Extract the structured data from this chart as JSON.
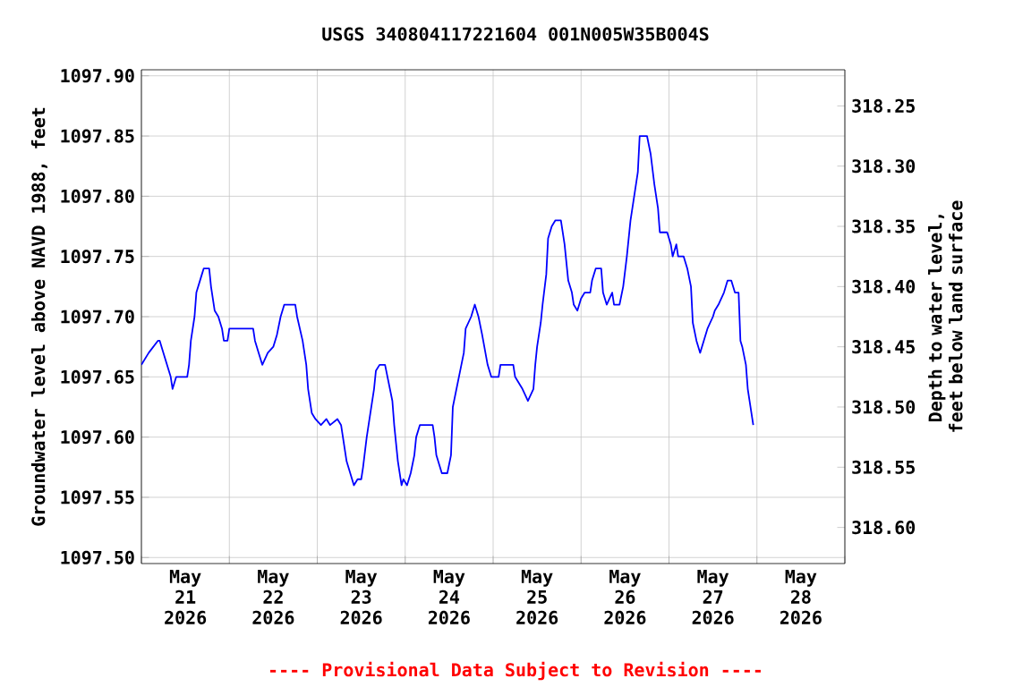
{
  "chart_data": {
    "type": "line",
    "title": "USGS 340804117221604 001N005W35B004S",
    "ylabel": "Groundwater level above NAVD 1988, feet",
    "y2label": "Depth to water level, feet below land surface",
    "annotations": [
      "---- Provisional Data Subject to Revision ----"
    ],
    "x": [
      "2026-05-21T00:00",
      "2026-05-21T02:00",
      "2026-05-21T04:30",
      "2026-05-21T05:00",
      "2026-05-21T06:00",
      "2026-05-21T07:00",
      "2026-05-21T08:00",
      "2026-05-21T08:30",
      "2026-05-21T09:30",
      "2026-05-21T12:30",
      "2026-05-21T13:00",
      "2026-05-21T13:30",
      "2026-05-21T14:30",
      "2026-05-21T15:00",
      "2026-05-21T16:30",
      "2026-05-21T17:00",
      "2026-05-21T18:30",
      "2026-05-21T19:00",
      "2026-05-21T20:00",
      "2026-05-21T21:00",
      "2026-05-21T22:00",
      "2026-05-21T22:30",
      "2026-05-21T23:30",
      "2026-05-22T00:00",
      "2026-05-22T06:30",
      "2026-05-22T07:00",
      "2026-05-22T08:00",
      "2026-05-22T09:00",
      "2026-05-22T10:30",
      "2026-05-22T12:00",
      "2026-05-22T13:00",
      "2026-05-22T14:00",
      "2026-05-22T15:00",
      "2026-05-22T18:00",
      "2026-05-22T18:30",
      "2026-05-22T20:00",
      "2026-05-22T21:00",
      "2026-05-22T21:30",
      "2026-05-22T22:30",
      "2026-05-22T23:30",
      "2026-05-23T01:00",
      "2026-05-23T02:30",
      "2026-05-23T03:30",
      "2026-05-23T05:30",
      "2026-05-23T06:30",
      "2026-05-23T07:00",
      "2026-05-23T08:00",
      "2026-05-23T09:00",
      "2026-05-23T10:00",
      "2026-05-23T11:00",
      "2026-05-23T12:00",
      "2026-05-23T12:30",
      "2026-05-23T13:30",
      "2026-05-23T14:30",
      "2026-05-23T15:30",
      "2026-05-23T16:00",
      "2026-05-23T17:00",
      "2026-05-23T18:30",
      "2026-05-23T19:30",
      "2026-05-23T20:30",
      "2026-05-23T21:00",
      "2026-05-23T22:00",
      "2026-05-23T23:00",
      "2026-05-23T23:30",
      "2026-05-24T00:30",
      "2026-05-24T01:30",
      "2026-05-24T02:30",
      "2026-05-24T03:00",
      "2026-05-24T04:00",
      "2026-05-24T07:30",
      "2026-05-24T08:00",
      "2026-05-24T08:30",
      "2026-05-24T10:00",
      "2026-05-24T11:30",
      "2026-05-24T12:30",
      "2026-05-24T13:00",
      "2026-05-24T14:00",
      "2026-05-24T15:00",
      "2026-05-24T16:00",
      "2026-05-24T16:30",
      "2026-05-24T18:00",
      "2026-05-24T19:00",
      "2026-05-24T20:00",
      "2026-05-24T21:00",
      "2026-05-24T22:30",
      "2026-05-24T23:30",
      "2026-05-25T01:30",
      "2026-05-25T02:00",
      "2026-05-25T05:30",
      "2026-05-25T06:00",
      "2026-05-25T07:00",
      "2026-05-25T08:00",
      "2026-05-25T09:30",
      "2026-05-25T11:00",
      "2026-05-25T11:30",
      "2026-05-25T12:00",
      "2026-05-25T13:00",
      "2026-05-25T13:30",
      "2026-05-25T14:30",
      "2026-05-25T15:00",
      "2026-05-25T16:00",
      "2026-05-25T17:00",
      "2026-05-25T18:30",
      "2026-05-25T19:30",
      "2026-05-25T20:30",
      "2026-05-25T21:30",
      "2026-05-25T22:00",
      "2026-05-25T23:00",
      "2026-05-26T00:00",
      "2026-05-26T01:00",
      "2026-05-26T02:30",
      "2026-05-26T03:00",
      "2026-05-26T04:00",
      "2026-05-26T05:30",
      "2026-05-26T06:00",
      "2026-05-26T07:00",
      "2026-05-26T08:30",
      "2026-05-26T09:00",
      "2026-05-26T10:30",
      "2026-05-26T11:30",
      "2026-05-26T12:30",
      "2026-05-26T13:30",
      "2026-05-26T14:30",
      "2026-05-26T15:30",
      "2026-05-26T16:00",
      "2026-05-26T18:00",
      "2026-05-26T19:00",
      "2026-05-26T20:00",
      "2026-05-26T21:00",
      "2026-05-26T21:30",
      "2026-05-26T23:30",
      "2026-05-27T00:30",
      "2026-05-27T01:00",
      "2026-05-27T02:00",
      "2026-05-27T02:30",
      "2026-05-27T04:00",
      "2026-05-27T05:00",
      "2026-05-27T06:00",
      "2026-05-27T06:30",
      "2026-05-27T07:30",
      "2026-05-27T08:30",
      "2026-05-27T09:30",
      "2026-05-27T10:30",
      "2026-05-27T12:00",
      "2026-05-27T12:30",
      "2026-05-27T13:30",
      "2026-05-27T15:00",
      "2026-05-27T16:00",
      "2026-05-27T17:00",
      "2026-05-27T18:00",
      "2026-05-27T19:00",
      "2026-05-27T19:30",
      "2026-05-27T20:00",
      "2026-05-27T21:00",
      "2026-05-27T21:30",
      "2026-05-27T22:00",
      "2026-05-27T23:00"
    ],
    "series": [
      {
        "color": "#0000ff",
        "values": [
          1097.66,
          1097.67,
          1097.68,
          1097.68,
          1097.67,
          1097.66,
          1097.65,
          1097.64,
          1097.65,
          1097.65,
          1097.66,
          1097.68,
          1097.7,
          1097.72,
          1097.735,
          1097.74,
          1097.74,
          1097.725,
          1097.705,
          1097.7,
          1097.69,
          1097.68,
          1097.68,
          1097.69,
          1097.69,
          1097.68,
          1097.67,
          1097.66,
          1097.67,
          1097.675,
          1097.685,
          1097.7,
          1097.71,
          1097.71,
          1097.7,
          1097.68,
          1097.66,
          1097.64,
          1097.62,
          1097.615,
          1097.61,
          1097.615,
          1097.61,
          1097.615,
          1097.61,
          1097.6,
          1097.58,
          1097.57,
          1097.56,
          1097.565,
          1097.565,
          1097.575,
          1097.6,
          1097.62,
          1097.64,
          1097.655,
          1097.66,
          1097.66,
          1097.645,
          1097.63,
          1097.61,
          1097.58,
          1097.56,
          1097.565,
          1097.56,
          1097.57,
          1097.585,
          1097.6,
          1097.61,
          1097.61,
          1097.6,
          1097.585,
          1097.57,
          1097.57,
          1097.585,
          1097.625,
          1097.64,
          1097.655,
          1097.67,
          1097.69,
          1097.7,
          1097.71,
          1097.7,
          1097.685,
          1097.66,
          1097.65,
          1097.65,
          1097.66,
          1097.66,
          1097.65,
          1097.645,
          1097.64,
          1097.63,
          1097.64,
          1097.66,
          1097.675,
          1097.695,
          1097.71,
          1097.735,
          1097.765,
          1097.775,
          1097.78,
          1097.78,
          1097.76,
          1097.73,
          1097.72,
          1097.71,
          1097.705,
          1097.715,
          1097.72,
          1097.72,
          1097.73,
          1097.74,
          1097.74,
          1097.72,
          1097.71,
          1097.72,
          1097.71,
          1097.71,
          1097.725,
          1097.75,
          1097.78,
          1097.8,
          1097.82,
          1097.85,
          1097.85,
          1097.835,
          1097.81,
          1097.79,
          1097.77,
          1097.77,
          1097.76,
          1097.75,
          1097.76,
          1097.75,
          1097.75,
          1097.74,
          1097.725,
          1097.695,
          1097.68,
          1097.67,
          1097.68,
          1097.69,
          1097.7,
          1097.705,
          1097.71,
          1097.72,
          1097.73,
          1097.73,
          1097.72,
          1097.72,
          1097.68,
          1097.675,
          1097.66,
          1097.64,
          1097.63,
          1097.61
        ]
      }
    ],
    "xlim": [
      "2026-05-21T00:00",
      "2026-05-29T00:00"
    ],
    "xticks": [
      {
        "value": "2026-05-21T00:00",
        "label": null
      },
      {
        "value": "2026-05-22T00:00",
        "label": null
      },
      {
        "value": "2026-05-23T00:00",
        "label": null
      },
      {
        "value": "2026-05-24T00:00",
        "label": null
      },
      {
        "value": "2026-05-25T00:00",
        "label": null
      },
      {
        "value": "2026-05-26T00:00",
        "label": null
      },
      {
        "value": "2026-05-27T00:00",
        "label": null
      },
      {
        "value": "2026-05-28T00:00",
        "label": null
      },
      {
        "value": "2026-05-29T00:00",
        "label": null
      },
      {
        "value": "2026-05-21T12:00",
        "label": "May 21 2026"
      },
      {
        "value": "2026-05-22T12:00",
        "label": "May 22 2026"
      },
      {
        "value": "2026-05-23T12:00",
        "label": "May 23 2026"
      },
      {
        "value": "2026-05-24T12:00",
        "label": "May 24 2026"
      },
      {
        "value": "2026-05-25T12:00",
        "label": "May 25 2026"
      },
      {
        "value": "2026-05-26T12:00",
        "label": "May 26 2026"
      },
      {
        "value": "2026-05-27T12:00",
        "label": "May 27 2026"
      },
      {
        "value": "2026-05-28T12:00",
        "label": "May 28 2026"
      }
    ],
    "ylim": [
      1097.495,
      1097.905
    ],
    "yticks": [
      {
        "value": 1097.5,
        "label": "1097.50"
      },
      {
        "value": 1097.55,
        "label": "1097.55"
      },
      {
        "value": 1097.6,
        "label": "1097.60"
      },
      {
        "value": 1097.65,
        "label": "1097.65"
      },
      {
        "value": 1097.7,
        "label": "1097.70"
      },
      {
        "value": 1097.75,
        "label": "1097.75"
      },
      {
        "value": 1097.8,
        "label": "1097.80"
      },
      {
        "value": 1097.85,
        "label": "1097.85"
      },
      {
        "value": 1097.9,
        "label": "1097.90"
      }
    ],
    "y2lim": [
      318.63,
      318.22
    ],
    "y2ticks": [
      {
        "value": 318.25,
        "label": "318.25"
      },
      {
        "value": 318.3,
        "label": "318.30"
      },
      {
        "value": 318.35,
        "label": "318.35"
      },
      {
        "value": 318.4,
        "label": "318.40"
      },
      {
        "value": 318.45,
        "label": "318.45"
      },
      {
        "value": 318.5,
        "label": "318.50"
      },
      {
        "value": 318.55,
        "label": "318.55"
      },
      {
        "value": 318.6,
        "label": "318.60"
      }
    ],
    "grid": true
  }
}
